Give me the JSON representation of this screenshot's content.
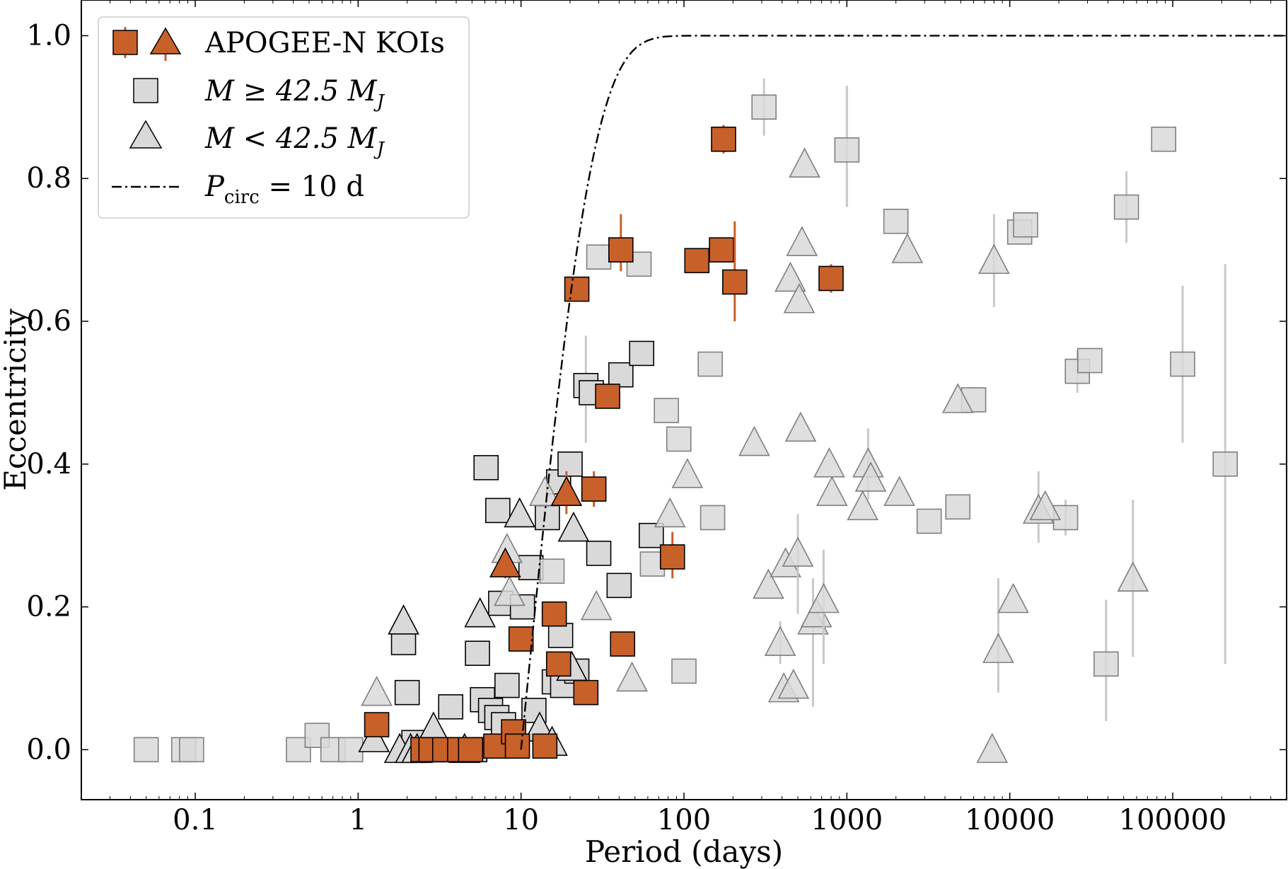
{
  "chart_data": {
    "type": "scatter",
    "xscale": "log",
    "xlim": [
      0.02,
      500000
    ],
    "ylim": [
      -0.07,
      1.05
    ],
    "xlabel": "Period (days)",
    "ylabel": "Eccentricity",
    "xticks": [
      {
        "value": 0.1,
        "label": "0.1"
      },
      {
        "value": 1,
        "label": "1"
      },
      {
        "value": 10,
        "label": "10"
      },
      {
        "value": 100,
        "label": "100"
      },
      {
        "value": 1000,
        "label": "1000"
      },
      {
        "value": 10000,
        "label": "10000"
      },
      {
        "value": 100000,
        "label": "100000"
      }
    ],
    "yticks": [
      {
        "value": 0.0,
        "label": "0.0"
      },
      {
        "value": 0.2,
        "label": "0.2"
      },
      {
        "value": 0.4,
        "label": "0.4"
      },
      {
        "value": 0.6,
        "label": "0.6"
      },
      {
        "value": 0.8,
        "label": "0.8"
      },
      {
        "value": 1.0,
        "label": "1.0"
      }
    ],
    "legend": {
      "placement": "upper-left",
      "entries": [
        {
          "label": "APOGEE-N KOIs",
          "marker": "square+triangle",
          "color": "#c8602a"
        },
        {
          "label_main": "M ≥ 42.5 M",
          "label_sub": "J",
          "marker": "square",
          "color": "#d9d9d9"
        },
        {
          "label_main": "M < 42.5 M",
          "label_sub": "J",
          "marker": "triangle",
          "color": "#d9d9d9"
        },
        {
          "label_main": "P",
          "label_sub": "circ",
          "label_tail": " = 10 d",
          "marker": "dash-dot-line",
          "color": "#000000"
        }
      ]
    },
    "colors": {
      "koi_fill": "#c8602a",
      "koi_err": "#c8602a",
      "ref_fill": "#d9d9d9",
      "ref_fill_far": "#d9d9d9",
      "ref_err": "#c8c8c8",
      "ref_edge_close": "#000000",
      "ref_edge_far": "#7f7f7f",
      "curve": "#000000"
    },
    "circularization_curve": {
      "label": "P_circ = 10 d",
      "p_circ": 10,
      "x_start": 10,
      "x_end": 500000,
      "points": 160
    },
    "series": [
      {
        "name": "Reference M >= 42.5 MJ (squares)",
        "marker": "square",
        "points": [
          {
            "x": 0.05,
            "y": 0.0,
            "e": "far"
          },
          {
            "x": 0.085,
            "y": 0.0,
            "e": "far"
          },
          {
            "x": 0.095,
            "y": 0.0,
            "e": "far"
          },
          {
            "x": 0.43,
            "y": 0.0,
            "e": "far"
          },
          {
            "x": 0.56,
            "y": 0.02,
            "e": "far"
          },
          {
            "x": 0.7,
            "y": 0.0,
            "e": "far"
          },
          {
            "x": 0.9,
            "y": 0.0,
            "e": "far"
          },
          {
            "x": 1.9,
            "y": 0.15,
            "e": "close"
          },
          {
            "x": 2.0,
            "y": 0.08,
            "e": "close"
          },
          {
            "x": 2.2,
            "y": 0.01,
            "e": "close"
          },
          {
            "x": 2.5,
            "y": 0.0,
            "e": "close"
          },
          {
            "x": 2.9,
            "y": 0.0,
            "e": "close"
          },
          {
            "x": 3.3,
            "y": 0.0,
            "e": "close"
          },
          {
            "x": 3.7,
            "y": 0.06,
            "e": "close"
          },
          {
            "x": 4.3,
            "y": 0.0,
            "e": "close"
          },
          {
            "x": 5.2,
            "y": 0.0,
            "e": "close"
          },
          {
            "x": 5.4,
            "y": 0.135,
            "e": "close"
          },
          {
            "x": 5.8,
            "y": 0.07,
            "e": "close"
          },
          {
            "x": 6.1,
            "y": 0.395,
            "e": "close"
          },
          {
            "x": 6.5,
            "y": 0.055,
            "e": "close"
          },
          {
            "x": 7.1,
            "y": 0.045,
            "e": "close"
          },
          {
            "x": 7.2,
            "y": 0.335,
            "e": "close"
          },
          {
            "x": 7.5,
            "y": 0.205,
            "e": "close"
          },
          {
            "x": 7.8,
            "y": 0.035,
            "e": "close"
          },
          {
            "x": 8.2,
            "y": 0.09,
            "e": "close"
          },
          {
            "x": 10.2,
            "y": 0.2,
            "e": "close"
          },
          {
            "x": 11.5,
            "y": 0.255,
            "e": "close"
          },
          {
            "x": 12.0,
            "y": 0.055,
            "e": "close"
          },
          {
            "x": 14.5,
            "y": 0.325,
            "e": "close"
          },
          {
            "x": 15.5,
            "y": 0.25,
            "e": "far"
          },
          {
            "x": 16.0,
            "y": 0.095,
            "e": "close"
          },
          {
            "x": 17.0,
            "y": 0.375,
            "e": "close"
          },
          {
            "x": 17.5,
            "y": 0.16,
            "e": "close"
          },
          {
            "x": 18.0,
            "y": 0.09,
            "e": "close"
          },
          {
            "x": 20.0,
            "y": 0.4,
            "e": "close"
          },
          {
            "x": 22.0,
            "y": 0.11,
            "e": "close"
          },
          {
            "x": 25.0,
            "y": 0.51,
            "e": "close",
            "err": [
              0.43,
              0.58
            ]
          },
          {
            "x": 27.0,
            "y": 0.5,
            "e": "close"
          },
          {
            "x": 30.0,
            "y": 0.275,
            "e": "close"
          },
          {
            "x": 30.0,
            "y": 0.69,
            "e": "far"
          },
          {
            "x": 40.0,
            "y": 0.23,
            "e": "close"
          },
          {
            "x": 41.0,
            "y": 0.525,
            "e": "close"
          },
          {
            "x": 53.0,
            "y": 0.68,
            "e": "far"
          },
          {
            "x": 55.0,
            "y": 0.555,
            "e": "close"
          },
          {
            "x": 63.0,
            "y": 0.3,
            "e": "close"
          },
          {
            "x": 64.0,
            "y": 0.26,
            "e": "far"
          },
          {
            "x": 78.0,
            "y": 0.475,
            "e": "far"
          },
          {
            "x": 93.0,
            "y": 0.435,
            "e": "far"
          },
          {
            "x": 100.0,
            "y": 0.11,
            "e": "far"
          },
          {
            "x": 145.0,
            "y": 0.54,
            "e": "far"
          },
          {
            "x": 150.0,
            "y": 0.325,
            "e": "far"
          },
          {
            "x": 310.0,
            "y": 0.9,
            "e": "far",
            "err": [
              0.86,
              0.94
            ]
          },
          {
            "x": 1000.0,
            "y": 0.84,
            "e": "far",
            "err": [
              0.76,
              0.93
            ]
          },
          {
            "x": 2000.0,
            "y": 0.74,
            "e": "far"
          },
          {
            "x": 3200.0,
            "y": 0.32,
            "e": "far"
          },
          {
            "x": 4800.0,
            "y": 0.34,
            "e": "far"
          },
          {
            "x": 6000.0,
            "y": 0.49,
            "e": "far"
          },
          {
            "x": 11500.0,
            "y": 0.725,
            "e": "far"
          },
          {
            "x": 12500.0,
            "y": 0.735,
            "e": "far"
          },
          {
            "x": 22000.0,
            "y": 0.325,
            "e": "far",
            "err": [
              0.3,
              0.35
            ]
          },
          {
            "x": 26000.0,
            "y": 0.53,
            "e": "far",
            "err": [
              0.5,
              0.56
            ]
          },
          {
            "x": 31000.0,
            "y": 0.545,
            "e": "far"
          },
          {
            "x": 39000.0,
            "y": 0.12,
            "e": "far",
            "err": [
              0.04,
              0.21
            ]
          },
          {
            "x": 52000.0,
            "y": 0.76,
            "e": "far",
            "err": [
              0.71,
              0.81
            ]
          },
          {
            "x": 88000.0,
            "y": 0.855,
            "e": "far"
          },
          {
            "x": 115000.0,
            "y": 0.54,
            "e": "far",
            "err": [
              0.43,
              0.65
            ]
          },
          {
            "x": 210000.0,
            "y": 0.4,
            "e": "far",
            "err": [
              0.12,
              0.68
            ]
          }
        ]
      },
      {
        "name": "Reference M < 42.5 MJ (triangles)",
        "marker": "triangle",
        "points": [
          {
            "x": 1.25,
            "y": 0.015,
            "e": "close"
          },
          {
            "x": 1.3,
            "y": 0.08,
            "e": "far"
          },
          {
            "x": 1.8,
            "y": 0.0,
            "e": "close"
          },
          {
            "x": 1.9,
            "y": 0.18,
            "e": "close"
          },
          {
            "x": 2.1,
            "y": 0.0,
            "e": "close"
          },
          {
            "x": 2.3,
            "y": 0.0,
            "e": "close"
          },
          {
            "x": 2.9,
            "y": 0.03,
            "e": "close"
          },
          {
            "x": 4.5,
            "y": 0.0,
            "e": "close"
          },
          {
            "x": 5.6,
            "y": 0.19,
            "e": "close"
          },
          {
            "x": 8.2,
            "y": 0.28,
            "e": "far"
          },
          {
            "x": 8.5,
            "y": 0.22,
            "e": "far"
          },
          {
            "x": 9.8,
            "y": 0.33,
            "e": "close"
          },
          {
            "x": 13.0,
            "y": 0.03,
            "e": "close"
          },
          {
            "x": 14.0,
            "y": 0.36,
            "e": "far"
          },
          {
            "x": 15.5,
            "y": 0.01,
            "e": "close"
          },
          {
            "x": 20.5,
            "y": 0.115,
            "e": "close"
          },
          {
            "x": 21.0,
            "y": 0.31,
            "e": "close"
          },
          {
            "x": 29.0,
            "y": 0.2,
            "e": "far"
          },
          {
            "x": 48.0,
            "y": 0.1,
            "e": "far"
          },
          {
            "x": 82.0,
            "y": 0.33,
            "e": "far"
          },
          {
            "x": 105.0,
            "y": 0.385,
            "e": "far"
          },
          {
            "x": 270.0,
            "y": 0.43,
            "e": "far"
          },
          {
            "x": 330.0,
            "y": 0.23,
            "e": "far"
          },
          {
            "x": 390.0,
            "y": 0.15,
            "e": "far",
            "err": [
              0.12,
              0.18
            ]
          },
          {
            "x": 410.0,
            "y": 0.085,
            "e": "far"
          },
          {
            "x": 420.0,
            "y": 0.26,
            "e": "far"
          },
          {
            "x": 450.0,
            "y": 0.66,
            "e": "far"
          },
          {
            "x": 470.0,
            "y": 0.09,
            "e": "far"
          },
          {
            "x": 500.0,
            "y": 0.275,
            "e": "far",
            "err": [
              0.19,
              0.33
            ]
          },
          {
            "x": 510.0,
            "y": 0.63,
            "e": "far"
          },
          {
            "x": 520.0,
            "y": 0.45,
            "e": "far"
          },
          {
            "x": 530.0,
            "y": 0.71,
            "e": "far"
          },
          {
            "x": 550.0,
            "y": 0.82,
            "e": "far"
          },
          {
            "x": 620.0,
            "y": 0.18,
            "e": "far",
            "err": [
              0.06,
              0.24
            ]
          },
          {
            "x": 650.0,
            "y": 0.19,
            "e": "far"
          },
          {
            "x": 720.0,
            "y": 0.21,
            "e": "far",
            "err": [
              0.12,
              0.28
            ]
          },
          {
            "x": 780.0,
            "y": 0.4,
            "e": "far"
          },
          {
            "x": 810.0,
            "y": 0.36,
            "e": "far"
          },
          {
            "x": 1250.0,
            "y": 0.34,
            "e": "far"
          },
          {
            "x": 1350.0,
            "y": 0.4,
            "e": "far",
            "err": [
              0.35,
              0.45
            ]
          },
          {
            "x": 1400.0,
            "y": 0.38,
            "e": "far"
          },
          {
            "x": 2100.0,
            "y": 0.36,
            "e": "far"
          },
          {
            "x": 2350.0,
            "y": 0.7,
            "e": "far"
          },
          {
            "x": 4800.0,
            "y": 0.49,
            "e": "far"
          },
          {
            "x": 7800.0,
            "y": 0.0,
            "e": "far"
          },
          {
            "x": 8000.0,
            "y": 0.685,
            "e": "far",
            "err": [
              0.62,
              0.75
            ]
          },
          {
            "x": 8500.0,
            "y": 0.14,
            "e": "far",
            "err": [
              0.08,
              0.24
            ]
          },
          {
            "x": 10500.0,
            "y": 0.21,
            "e": "far"
          },
          {
            "x": 15000.0,
            "y": 0.335,
            "e": "far",
            "err": [
              0.29,
              0.39
            ]
          },
          {
            "x": 16500.0,
            "y": 0.34,
            "e": "far"
          },
          {
            "x": 57000.0,
            "y": 0.24,
            "e": "far",
            "err": [
              0.13,
              0.35
            ]
          }
        ]
      },
      {
        "name": "APOGEE-N KOIs (squares)",
        "marker": "square",
        "color": "#c8602a",
        "points": [
          {
            "x": 1.3,
            "y": 0.035,
            "err": [
              0.02,
              0.05
            ]
          },
          {
            "x": 2.5,
            "y": 0.0
          },
          {
            "x": 2.8,
            "y": 0.0
          },
          {
            "x": 3.4,
            "y": 0.0
          },
          {
            "x": 4.2,
            "y": 0.0
          },
          {
            "x": 4.9,
            "y": 0.0
          },
          {
            "x": 7.0,
            "y": 0.005
          },
          {
            "x": 9.0,
            "y": 0.025
          },
          {
            "x": 9.5,
            "y": 0.005
          },
          {
            "x": 10.0,
            "y": 0.155
          },
          {
            "x": 14.0,
            "y": 0.005
          },
          {
            "x": 16.0,
            "y": 0.19
          },
          {
            "x": 17.0,
            "y": 0.12
          },
          {
            "x": 22.0,
            "y": 0.645
          },
          {
            "x": 25.0,
            "y": 0.08
          },
          {
            "x": 28.0,
            "y": 0.365,
            "err": [
              0.34,
              0.39
            ]
          },
          {
            "x": 34.0,
            "y": 0.495
          },
          {
            "x": 41.0,
            "y": 0.7,
            "err": [
              0.67,
              0.75
            ]
          },
          {
            "x": 42.0,
            "y": 0.148
          },
          {
            "x": 85.0,
            "y": 0.27,
            "err": [
              0.24,
              0.305
            ]
          },
          {
            "x": 120.0,
            "y": 0.685
          },
          {
            "x": 170.0,
            "y": 0.7
          },
          {
            "x": 175.0,
            "y": 0.855,
            "err": [
              0.835,
              0.875
            ]
          },
          {
            "x": 205.0,
            "y": 0.655,
            "err": [
              0.6,
              0.74
            ]
          },
          {
            "x": 800.0,
            "y": 0.66,
            "err": [
              0.64,
              0.68
            ]
          }
        ]
      },
      {
        "name": "APOGEE-N KOIs (triangles)",
        "marker": "triangle",
        "color": "#c8602a",
        "points": [
          {
            "x": 8.0,
            "y": 0.26,
            "err": [
              0.24,
              0.28
            ]
          },
          {
            "x": 19.0,
            "y": 0.36,
            "err": [
              0.33,
              0.39
            ]
          }
        ]
      }
    ]
  }
}
